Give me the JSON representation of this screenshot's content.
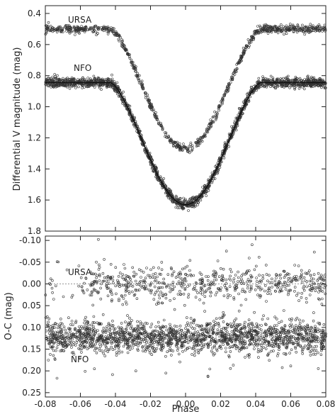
{
  "chart_data": [
    {
      "type": "scatter",
      "panel": "top",
      "xlabel": "",
      "ylabel": "Differential V magnitude (mag)",
      "xlim": [
        -0.08,
        0.08
      ],
      "ylim": [
        1.8,
        0.35
      ],
      "y_inverted": true,
      "x_ticks": [
        -0.08,
        -0.06,
        -0.04,
        -0.02,
        0.0,
        0.02,
        0.04,
        0.06,
        0.08
      ],
      "y_tick_labels": [
        "0.4",
        "0.6",
        "0.8",
        "1.0",
        "1.2",
        "1.4",
        "1.6",
        "1.8"
      ],
      "y_ticks": [
        0.4,
        0.6,
        0.8,
        1.0,
        1.2,
        1.4,
        1.6,
        1.8
      ],
      "grid": false,
      "series": [
        {
          "name": "URSA",
          "label": "URSA",
          "shape": {
            "base": 0.5,
            "depth": 0.77,
            "half_width": 0.043,
            "center": 0.0
          },
          "points_sampled": [
            [
              -0.08,
              0.5
            ],
            [
              -0.06,
              0.49
            ],
            [
              -0.045,
              0.49
            ],
            [
              -0.04,
              0.51
            ],
            [
              -0.03,
              0.62
            ],
            [
              -0.02,
              0.8
            ],
            [
              -0.01,
              1.06
            ],
            [
              -0.005,
              1.2
            ],
            [
              0.0,
              1.27
            ],
            [
              0.005,
              1.21
            ],
            [
              0.01,
              1.07
            ],
            [
              0.02,
              0.82
            ],
            [
              0.03,
              0.63
            ],
            [
              0.04,
              0.51
            ],
            [
              0.06,
              0.49
            ],
            [
              0.08,
              0.5
            ]
          ]
        },
        {
          "name": "NFO",
          "label": "NFO",
          "shape": {
            "base": 0.845,
            "depth": 0.785,
            "half_width": 0.043,
            "center": 0.0
          },
          "points_sampled": [
            [
              -0.08,
              0.84
            ],
            [
              -0.06,
              0.84
            ],
            [
              -0.045,
              0.84
            ],
            [
              -0.04,
              0.86
            ],
            [
              -0.03,
              0.98
            ],
            [
              -0.02,
              1.17
            ],
            [
              -0.01,
              1.42
            ],
            [
              -0.005,
              1.57
            ],
            [
              0.0,
              1.63
            ],
            [
              0.005,
              1.57
            ],
            [
              0.01,
              1.42
            ],
            [
              0.02,
              1.17
            ],
            [
              0.03,
              0.98
            ],
            [
              0.04,
              0.86
            ],
            [
              0.06,
              0.84
            ],
            [
              0.08,
              0.84
            ]
          ],
          "model_curve": true
        }
      ]
    },
    {
      "type": "scatter",
      "panel": "bottom",
      "xlabel": "Phase",
      "ylabel": "O-C (mag)",
      "xlim": [
        -0.08,
        0.08
      ],
      "ylim": [
        0.26,
        -0.11
      ],
      "y_inverted": true,
      "x_tick_labels": [
        "-0.08",
        "-0.06",
        "-0.04",
        "-0.02",
        "0.00",
        "0.02",
        "0.04",
        "0.06",
        "0.08"
      ],
      "x_ticks": [
        -0.08,
        -0.06,
        -0.04,
        -0.02,
        0.0,
        0.02,
        0.04,
        0.06,
        0.08
      ],
      "y_tick_labels": [
        "-0.10",
        "-0.05",
        "0.00",
        "0.05",
        "0.10",
        "0.15",
        "0.20",
        "0.25"
      ],
      "y_ticks": [
        -0.1,
        -0.05,
        0.0,
        0.05,
        0.1,
        0.15,
        0.2,
        0.25
      ],
      "grid": false,
      "series": [
        {
          "name": "URSA",
          "label": "URSA",
          "mean": 0.0,
          "scatter": 0.02,
          "reference_line": 0.0
        },
        {
          "name": "NFO",
          "label": "NFO",
          "mean": 0.122,
          "scatter": 0.018,
          "reference_line": 0.122
        }
      ]
    }
  ]
}
